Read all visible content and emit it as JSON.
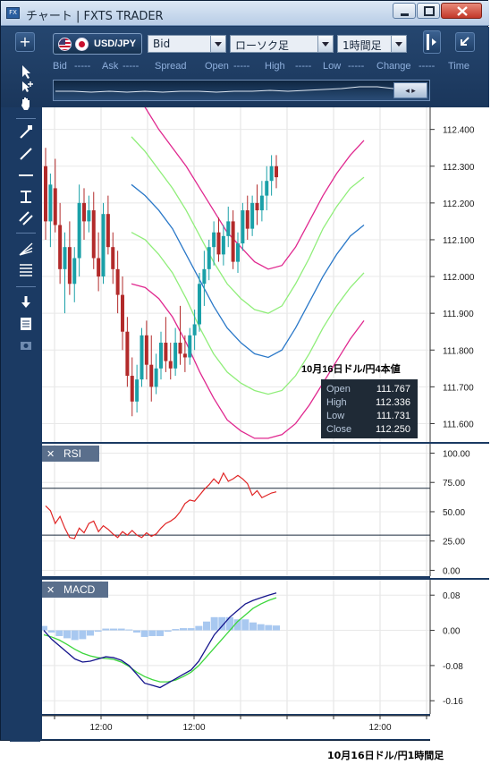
{
  "window": {
    "app_icon": "FX",
    "title": "チャート | FXTS TRADER",
    "minimize_icon": "minimize-icon",
    "maximize_icon": "maximize-icon",
    "close_icon": "close-icon"
  },
  "toolbar": {
    "add_label": "+",
    "pair": "USD/JPY",
    "price_side": "Bid",
    "chart_type": "ローソク足",
    "timeframe": "1時間足",
    "expand_icon": "expand-icon",
    "undock_icon": "undock-icon",
    "quote_fields": [
      {
        "label": "Bid",
        "value": "-----"
      },
      {
        "label": "Ask",
        "value": "-----"
      },
      {
        "label": "Spread",
        "value": ""
      },
      {
        "label": "Open",
        "value": "-----"
      },
      {
        "label": "High",
        "value": "-----"
      },
      {
        "label": "Low",
        "value": "-----"
      },
      {
        "label": "Change",
        "value": "-----"
      },
      {
        "label": "Time",
        "value": ""
      }
    ]
  },
  "sidebar": {
    "tools": [
      "cursor-icon",
      "crosshair-icon",
      "hand-icon",
      "trendline-icon",
      "line-icon",
      "horizontal-line-icon",
      "vertical-line-icon",
      "channel-icon",
      "fan-icon",
      "fibonacci-icon",
      "download-icon",
      "list-icon",
      "camera-icon"
    ]
  },
  "annotation": {
    "heading": "10月16日ドル/円4本値",
    "rows": [
      {
        "label": "Open",
        "value": "111.767"
      },
      {
        "label": "High",
        "value": "112.336"
      },
      {
        "label": "Low",
        "value": "111.731"
      },
      {
        "label": "Close",
        "value": "112.250"
      }
    ]
  },
  "panels": {
    "rsi_label": "RSI",
    "macd_label": "MACD",
    "close_glyph": "✕"
  },
  "caption": "10月16日ドル/円1時間足",
  "colors": {
    "bull": "#1aa0a8",
    "bear": "#b22a2a",
    "bb_outer": "#e0288f",
    "bb_inner": "#90ee7a",
    "bb_mid": "#2a78c8",
    "rsi": "#e02424",
    "macd": "#14148c",
    "signal": "#3dd63d",
    "hist": "#a8c8f0"
  },
  "chart_data": [
    {
      "type": "candlestick",
      "title": "USD/JPY 1時間足",
      "yticks": [
        111.6,
        111.7,
        111.8,
        111.9,
        112.0,
        112.1,
        112.2,
        112.3,
        112.4
      ],
      "ytick_labels": [
        "111.600",
        "111.700",
        "111.800",
        "111.900",
        "112.000",
        "112.100",
        "112.200",
        "112.300",
        "112.400"
      ],
      "ylim": [
        111.55,
        112.46
      ],
      "xtick_labels": [
        "12:00",
        "12:00",
        "12:00"
      ],
      "grid": true,
      "ohlc": [
        [
          112.3,
          112.35,
          112.1,
          112.15
        ],
        [
          112.15,
          112.28,
          112.08,
          112.25
        ],
        [
          112.24,
          112.32,
          112.12,
          112.14
        ],
        [
          112.14,
          112.2,
          111.98,
          112.02
        ],
        [
          112.02,
          112.12,
          111.9,
          112.08
        ],
        [
          112.08,
          112.15,
          111.95,
          111.98
        ],
        [
          111.98,
          112.08,
          111.93,
          112.05
        ],
        [
          112.05,
          112.25,
          112.0,
          112.2
        ],
        [
          112.2,
          112.24,
          112.1,
          112.15
        ],
        [
          112.15,
          112.22,
          112.12,
          112.18
        ],
        [
          112.18,
          112.23,
          112.02,
          112.05
        ],
        [
          112.05,
          112.12,
          111.96,
          112.0
        ],
        [
          112.0,
          112.2,
          111.98,
          112.17
        ],
        [
          112.17,
          112.22,
          112.06,
          112.08
        ],
        [
          112.08,
          112.12,
          111.98,
          112.02
        ],
        [
          112.02,
          112.07,
          111.9,
          111.95
        ],
        [
          111.95,
          112.0,
          111.8,
          111.85
        ],
        [
          111.85,
          111.89,
          111.7,
          111.73
        ],
        [
          111.73,
          111.78,
          111.62,
          111.66
        ],
        [
          111.66,
          111.76,
          111.63,
          111.72
        ],
        [
          111.72,
          111.86,
          111.7,
          111.84
        ],
        [
          111.84,
          111.88,
          111.72,
          111.76
        ],
        [
          111.76,
          111.84,
          111.66,
          111.7
        ],
        [
          111.7,
          111.79,
          111.68,
          111.75
        ],
        [
          111.75,
          111.85,
          111.72,
          111.82
        ],
        [
          111.82,
          111.89,
          111.74,
          111.77
        ],
        [
          111.77,
          111.82,
          111.72,
          111.75
        ],
        [
          111.75,
          111.86,
          111.73,
          111.82
        ],
        [
          111.82,
          111.92,
          111.76,
          111.79
        ],
        [
          111.79,
          111.84,
          111.74,
          111.78
        ],
        [
          111.78,
          111.86,
          111.76,
          111.84
        ],
        [
          111.84,
          111.91,
          111.8,
          111.87
        ],
        [
          111.87,
          112.01,
          111.85,
          111.98
        ],
        [
          111.98,
          112.07,
          111.92,
          112.02
        ],
        [
          112.02,
          112.1,
          111.99,
          112.08
        ],
        [
          112.08,
          112.15,
          112.03,
          112.12
        ],
        [
          112.12,
          112.16,
          112.04,
          112.06
        ],
        [
          112.06,
          112.14,
          112.03,
          112.11
        ],
        [
          112.11,
          112.19,
          112.08,
          112.15
        ],
        [
          112.15,
          112.18,
          112.02,
          112.04
        ],
        [
          112.04,
          112.12,
          112.01,
          112.09
        ],
        [
          112.09,
          112.2,
          112.07,
          112.18
        ],
        [
          112.18,
          112.22,
          112.1,
          112.13
        ],
        [
          112.13,
          112.22,
          112.11,
          112.2
        ],
        [
          112.2,
          112.25,
          112.14,
          112.18
        ],
        [
          112.18,
          112.26,
          112.15,
          112.22
        ],
        [
          112.22,
          112.3,
          112.18,
          112.26
        ],
        [
          112.26,
          112.33,
          112.22,
          112.3
        ],
        [
          112.3,
          112.33,
          112.24,
          112.27
        ]
      ],
      "bollinger": {
        "upper2": [
          112.52,
          112.46,
          112.4,
          112.35,
          112.3,
          112.24,
          112.18,
          112.12,
          112.08,
          112.04,
          112.02,
          112.03,
          112.08,
          112.15,
          112.22,
          112.28,
          112.33,
          112.37
        ],
        "upper1": [
          112.38,
          112.34,
          112.29,
          112.24,
          112.18,
          112.11,
          112.04,
          111.98,
          111.94,
          111.91,
          111.9,
          111.92,
          111.98,
          112.05,
          112.13,
          112.19,
          112.24,
          112.27
        ],
        "middle": [
          112.25,
          112.22,
          112.18,
          112.13,
          112.06,
          111.99,
          111.92,
          111.86,
          111.82,
          111.79,
          111.78,
          111.8,
          111.86,
          111.93,
          112.0,
          112.06,
          112.11,
          112.14
        ],
        "lower1": [
          112.12,
          112.1,
          112.06,
          112.01,
          111.94,
          111.86,
          111.79,
          111.74,
          111.71,
          111.69,
          111.68,
          111.69,
          111.73,
          111.79,
          111.86,
          111.92,
          111.97,
          112.01
        ],
        "lower2": [
          111.98,
          111.97,
          111.94,
          111.89,
          111.82,
          111.74,
          111.67,
          111.61,
          111.58,
          111.56,
          111.56,
          111.57,
          111.6,
          111.65,
          111.71,
          111.77,
          111.83,
          111.88
        ]
      }
    },
    {
      "type": "line",
      "title": "RSI",
      "yticks": [
        0,
        25,
        50,
        75,
        100
      ],
      "ytick_labels": [
        "0.00",
        "25.00",
        "50.00",
        "75.00",
        "100.00"
      ],
      "ylim": [
        -5,
        108
      ],
      "reference_lines": [
        30,
        70
      ],
      "series": [
        {
          "name": "RSI",
          "values": [
            55,
            51,
            40,
            46,
            36,
            28,
            27,
            36,
            32,
            40,
            42,
            33,
            38,
            35,
            31,
            28,
            33,
            30,
            34,
            30,
            28,
            32,
            29,
            31,
            36,
            40,
            42,
            45,
            50,
            57,
            60,
            59,
            64,
            69,
            73,
            78,
            74,
            83,
            76,
            78,
            81,
            78,
            74,
            64,
            68,
            62,
            64,
            66,
            67
          ]
        }
      ]
    },
    {
      "type": "line",
      "title": "MACD",
      "yticks": [
        -0.16,
        -0.08,
        0.0,
        0.08
      ],
      "ytick_labels": [
        "-0.16",
        "-0.08",
        "0.00",
        "0.08"
      ],
      "ylim": [
        -0.19,
        0.115
      ],
      "series": [
        {
          "name": "MACD",
          "values": [
            0.0,
            -0.02,
            -0.035,
            -0.05,
            -0.065,
            -0.072,
            -0.07,
            -0.065,
            -0.06,
            -0.062,
            -0.068,
            -0.08,
            -0.1,
            -0.12,
            -0.125,
            -0.13,
            -0.12,
            -0.11,
            -0.1,
            -0.09,
            -0.07,
            -0.04,
            -0.01,
            0.01,
            0.03,
            0.045,
            0.06,
            0.068,
            0.074,
            0.08,
            0.085
          ]
        },
        {
          "name": "Signal",
          "values": [
            -0.01,
            -0.015,
            -0.022,
            -0.032,
            -0.043,
            -0.052,
            -0.058,
            -0.062,
            -0.064,
            -0.066,
            -0.072,
            -0.082,
            -0.095,
            -0.105,
            -0.112,
            -0.117,
            -0.117,
            -0.113,
            -0.105,
            -0.095,
            -0.08,
            -0.06,
            -0.04,
            -0.02,
            0.0,
            0.02,
            0.035,
            0.05,
            0.06,
            0.068,
            0.074
          ]
        },
        {
          "name": "Histogram",
          "values": [
            0.01,
            -0.005,
            -0.013,
            -0.018,
            -0.022,
            -0.02,
            -0.012,
            -0.003,
            0.004,
            0.004,
            0.004,
            0.002,
            -0.005,
            -0.015,
            -0.013,
            -0.013,
            -0.003,
            0.003,
            0.005,
            0.005,
            0.01,
            0.02,
            0.03,
            0.03,
            0.03,
            0.025,
            0.025,
            0.018,
            0.014,
            0.012,
            0.011
          ]
        }
      ]
    }
  ]
}
